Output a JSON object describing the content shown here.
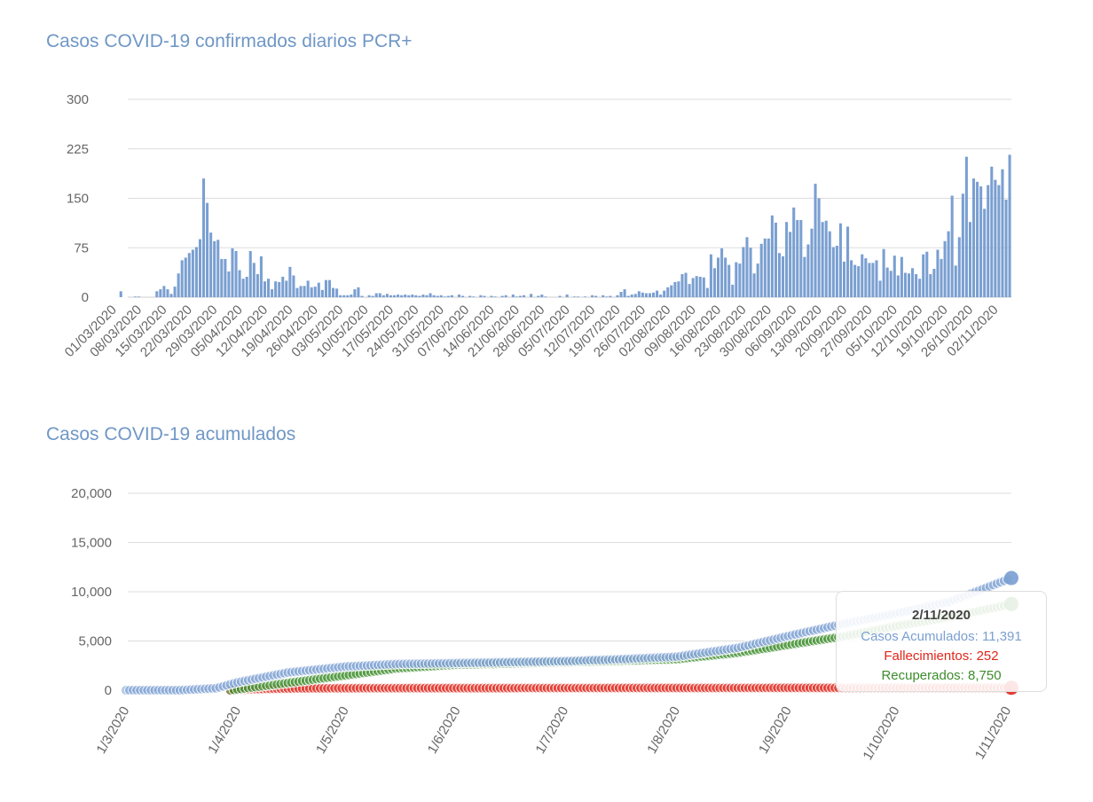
{
  "chart_data": [
    {
      "type": "bar",
      "title": "Casos COVID-19 confirmados diarios PCR+",
      "color": "#7a9fd1",
      "ylim": [
        0,
        300
      ],
      "yticks": [
        "0",
        "75",
        "150",
        "225",
        "300"
      ],
      "xtick_labels": [
        "01/03/2020",
        "08/03/2020",
        "15/03/2020",
        "22/03/2020",
        "29/03/2020",
        "05/04/2020",
        "12/04/2020",
        "19/04/2020",
        "26/04/2020",
        "03/05/2020",
        "10/05/2020",
        "17/05/2020",
        "24/05/2020",
        "31/05/2020",
        "07/06/2020",
        "14/06/2020",
        "21/06/2020",
        "28/06/2020",
        "05/07/2020",
        "12/07/2020",
        "19/07/2020",
        "26/07/2020",
        "02/08/2020",
        "09/08/2020",
        "16/08/2020",
        "23/08/2020",
        "30/08/2020",
        "06/09/2020",
        "13/09/2020",
        "20/09/2020",
        "27/09/2020",
        "05/10/2020",
        "12/10/2020",
        "19/10/2020",
        "26/10/2020",
        "02/11/2020"
      ],
      "values": [
        0,
        0,
        9,
        0,
        0,
        0,
        1,
        1,
        0,
        0,
        0,
        0,
        9,
        12,
        17,
        12,
        5,
        16,
        36,
        56,
        60,
        67,
        72,
        76,
        88,
        180,
        143,
        98,
        85,
        87,
        58,
        58,
        39,
        74,
        70,
        41,
        28,
        31,
        70,
        52,
        35,
        62,
        24,
        28,
        12,
        24,
        23,
        31,
        25,
        46,
        33,
        14,
        17,
        17,
        25,
        15,
        16,
        22,
        11,
        26,
        26,
        14,
        13,
        3,
        3,
        3,
        4,
        12,
        15,
        2,
        0,
        3,
        2,
        6,
        6,
        3,
        5,
        3,
        3,
        4,
        3,
        4,
        3,
        4,
        3,
        2,
        4,
        3,
        6,
        3,
        2,
        3,
        1,
        2,
        3,
        0,
        4,
        2,
        0,
        2,
        1,
        0,
        3,
        2,
        0,
        2,
        1,
        0,
        2,
        3,
        0,
        4,
        1,
        2,
        3,
        0,
        5,
        0,
        2,
        4,
        1,
        0,
        0,
        0,
        2,
        0,
        4,
        0,
        1,
        1,
        0,
        1,
        0,
        3,
        2,
        0,
        3,
        1,
        2,
        0,
        3,
        8,
        12,
        2,
        4,
        5,
        9,
        7,
        6,
        6,
        7,
        10,
        4,
        10,
        15,
        18,
        23,
        24,
        35,
        37,
        20,
        29,
        32,
        31,
        30,
        14,
        65,
        44,
        60,
        74,
        60,
        49,
        19,
        53,
        51,
        76,
        91,
        75,
        36,
        51,
        81,
        89,
        89,
        124,
        113,
        67,
        62,
        114,
        99,
        136,
        117,
        117,
        61,
        80,
        104,
        172,
        150,
        114,
        116,
        100,
        76,
        78,
        112,
        54,
        107,
        56,
        49,
        47,
        65,
        59,
        52,
        52,
        56,
        25,
        73,
        45,
        40,
        63,
        33,
        61,
        37,
        36,
        44,
        35,
        28,
        65,
        69,
        35,
        43,
        72,
        58,
        85,
        100,
        154,
        48,
        91,
        157,
        213,
        114,
        180,
        175,
        168,
        134,
        170,
        198,
        178,
        170,
        194,
        148,
        216
      ]
    },
    {
      "type": "scatter",
      "title": "Casos COVID-19 acumulados",
      "ylim": [
        0,
        20000
      ],
      "yticks": [
        "0",
        "5,000",
        "10,000",
        "15,000",
        "20,000"
      ],
      "xtick_labels": [
        "1/3/2020",
        "1/4/2020",
        "1/5/2020",
        "1/6/2020",
        "1/7/2020",
        "1/8/2020",
        "1/9/2020",
        "1/10/2020",
        "1/11/2020"
      ],
      "series": [
        {
          "name": "Casos Acumulados",
          "color": "#7a9fd1",
          "knots_day": [
            0,
            15,
            25,
            31,
            45,
            61,
            75,
            92,
            122,
            138,
            153,
            170,
            184,
            200,
            214,
            229,
            246
          ],
          "knots_value": [
            0,
            0,
            200,
            800,
            1800,
            2400,
            2650,
            2750,
            2950,
            3150,
            3400,
            4300,
            5500,
            6800,
            7800,
            9000,
            11391
          ]
        },
        {
          "name": "Fallecimientos",
          "color": "#e0271b",
          "knots_day": [
            29,
            35,
            45,
            61,
            92,
            153,
            184,
            214,
            246
          ],
          "knots_value": [
            0,
            100,
            170,
            205,
            215,
            225,
            235,
            242,
            252
          ]
        },
        {
          "name": "Recuperados",
          "color": "#3d8c2c",
          "knots_day": [
            29,
            40,
            61,
            75,
            92,
            122,
            153,
            170,
            184,
            200,
            214,
            230,
            246
          ],
          "knots_value": [
            0,
            500,
            1500,
            2200,
            2600,
            2850,
            3150,
            3800,
            4600,
            5500,
            6500,
            7500,
            8750
          ]
        }
      ]
    }
  ],
  "tooltip": {
    "date": "2/11/2020",
    "lines": [
      "Casos Acumulados: 11,391",
      "Fallecimientos: 252",
      "Recuperados: 8,750"
    ]
  }
}
